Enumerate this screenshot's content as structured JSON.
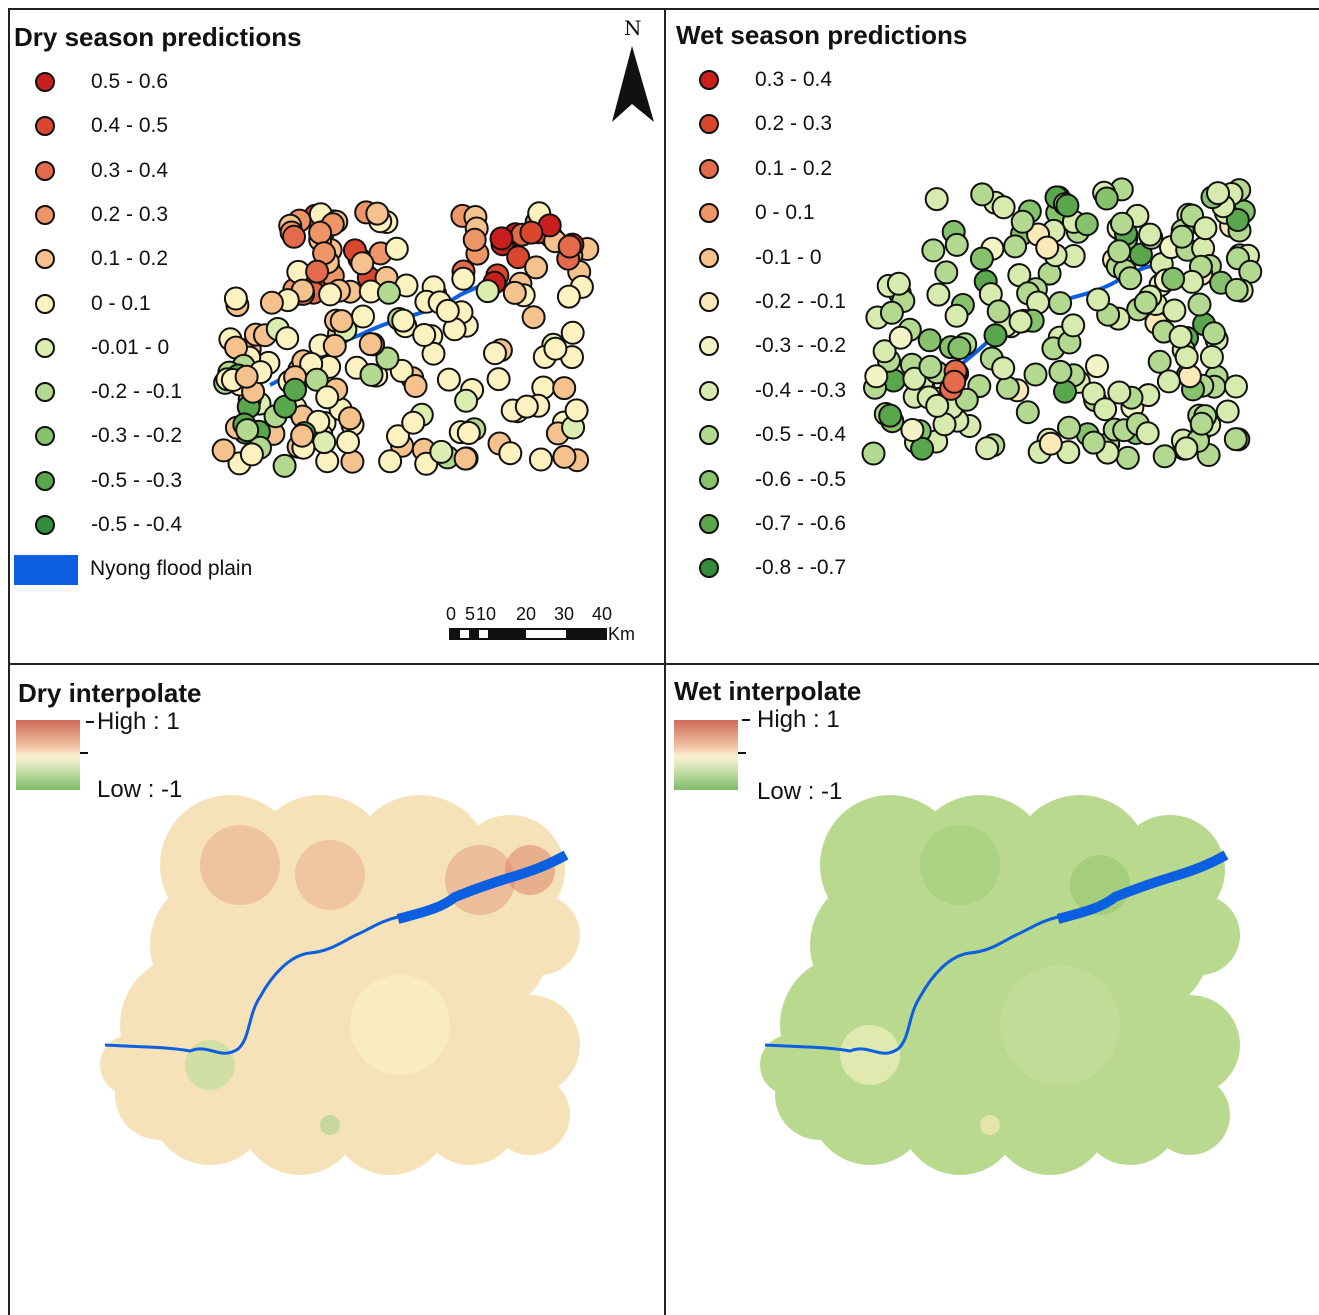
{
  "panels": {
    "dry_predictions": {
      "title": "Dry season predictions",
      "legend": [
        {
          "label": "0.5 - 0.6",
          "color": "#c81e1e"
        },
        {
          "label": "0.4 - 0.5",
          "color": "#d9472f"
        },
        {
          "label": "0.3 - 0.4",
          "color": "#e46a4c"
        },
        {
          "label": "0.2 - 0.3",
          "color": "#ee9568"
        },
        {
          "label": "0.1 - 0.2",
          "color": "#f5c28e"
        },
        {
          "label": "0 - 0.1",
          "color": "#fbf2c0"
        },
        {
          "label": "-0.01 - 0",
          "color": "#dcedb0"
        },
        {
          "label": "-0.2 - -0.1",
          "color": "#b3d890"
        },
        {
          "label": "-0.3 - -0.2",
          "color": "#86c26c"
        },
        {
          "label": "-0.5 - -0.3",
          "color": "#5aa64d"
        },
        {
          "label": "-0.5 - -0.4",
          "color": "#338d3a"
        }
      ],
      "flood_label": "Nyong flood plain",
      "flood_color": "#0b5fe0",
      "north_label": "N",
      "scale": {
        "ticks": [
          "0",
          "5",
          "10",
          "20",
          "30",
          "40"
        ],
        "unit": "Km"
      }
    },
    "wet_predictions": {
      "title": "Wet season predictions",
      "legend": [
        {
          "label": "0.3 - 0.4",
          "color": "#c81e1e"
        },
        {
          "label": "0.2 - 0.3",
          "color": "#d9472f"
        },
        {
          "label": "0.1 - 0.2",
          "color": "#e46a4c"
        },
        {
          "label": "0 - 0.1",
          "color": "#ee9568"
        },
        {
          "label": "-0.1 - 0",
          "color": "#f5c28e"
        },
        {
          "label": "-0.2 - -0.1",
          "color": "#fbe9b8"
        },
        {
          "label": "-0.3 - -0.2",
          "color": "#f3f4c6"
        },
        {
          "label": "-0.4 - -0.3",
          "color": "#d8ebae"
        },
        {
          "label": "-0.5 - -0.4",
          "color": "#b3d890"
        },
        {
          "label": "-0.6 - -0.5",
          "color": "#86c26c"
        },
        {
          "label": "-0.7 - -0.6",
          "color": "#5aa64d"
        },
        {
          "label": "-0.8 - -0.7",
          "color": "#338d3a"
        }
      ]
    },
    "dry_interpolate": {
      "title": "Dry interpolate",
      "high_label": "High : 1",
      "low_label": "Low : -1"
    },
    "wet_interpolate": {
      "title": "Wet interpolate",
      "high_label": "High : 1",
      "low_label": "Low : -1"
    }
  }
}
